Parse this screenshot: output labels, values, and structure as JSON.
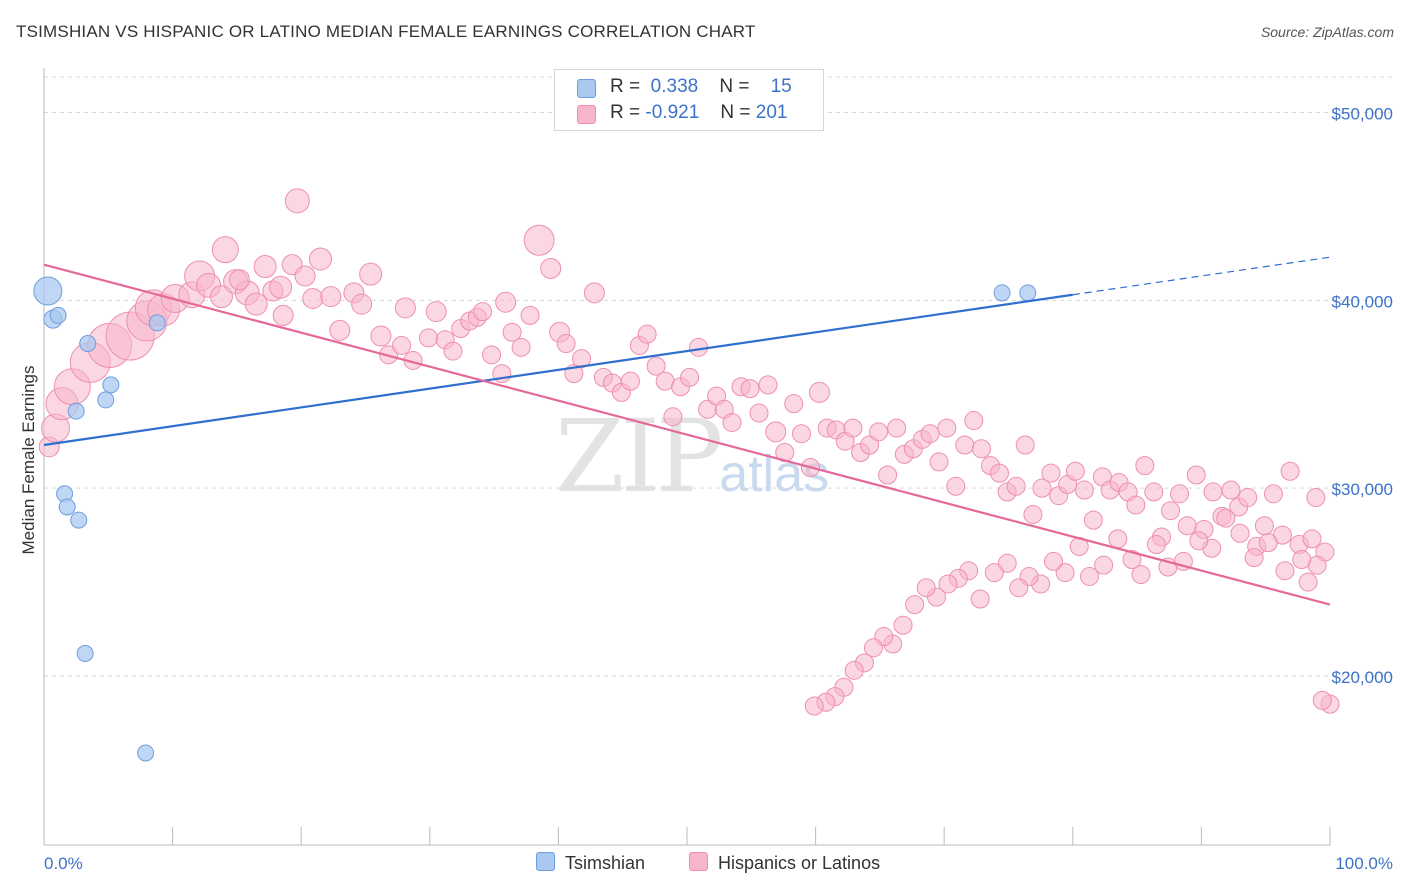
{
  "title": "TSIMSHIAN VS HISPANIC OR LATINO MEDIAN FEMALE EARNINGS CORRELATION CHART",
  "source": "Source: ZipAtlas.com",
  "watermark": {
    "zip": "ZIP",
    "atlas": "atlas"
  },
  "legend": {
    "rows": [
      {
        "r_label": "R =",
        "r_value": "0.338",
        "n_label": "N =",
        "n_value": "15",
        "color": "#a9c8f0"
      },
      {
        "r_label": "R =",
        "r_value": "-0.921",
        "n_label": "N =",
        "n_value": "201",
        "color": "#f7b6cb"
      }
    ]
  },
  "bottom_legend": [
    {
      "label": "Tsimshian",
      "color": "#a9c8f0"
    },
    {
      "label": "Hispanics or Latinos",
      "color": "#f7b6cb"
    }
  ],
  "colors": {
    "blue_fill": "#a9c8f0",
    "blue_stroke": "#6d9ee0",
    "blue_line": "#2f6fd0",
    "pink_fill": "#f7b6cb",
    "pink_stroke": "#ee8fb0",
    "pink_line": "#e4699a",
    "grid": "#d9d9d9",
    "axis_label": "#3d72c9"
  },
  "chart_data": {
    "type": "scatter",
    "title": "TSIMSHIAN VS HISPANIC OR LATINO MEDIAN FEMALE EARNINGS CORRELATION CHART",
    "xlabel": "",
    "ylabel": "Median Female Earnings",
    "xlim": [
      0,
      100
    ],
    "ylim": [
      11000,
      52000
    ],
    "x_tick_labels": [
      "0.0%",
      "100.0%"
    ],
    "y_ticks": [
      20000,
      30000,
      40000,
      50000
    ],
    "y_tick_labels": [
      "$20,000",
      "$30,000",
      "$40,000",
      "$50,000"
    ],
    "series": [
      {
        "name": "Tsimshian",
        "trend": {
          "x0": 0,
          "y0": 32300,
          "x1": 80,
          "y1": 40300,
          "x_dash_end": 100,
          "y_dash_end": 42300
        },
        "points": [
          [
            0.3,
            40500,
            14
          ],
          [
            0.7,
            39000,
            9
          ],
          [
            1.1,
            39200,
            8
          ],
          [
            2.5,
            34100,
            8
          ],
          [
            3.4,
            37700,
            8
          ],
          [
            4.8,
            34700,
            8
          ],
          [
            5.2,
            35500,
            8
          ],
          [
            8.8,
            38800,
            8
          ],
          [
            1.6,
            29700,
            8
          ],
          [
            1.8,
            29000,
            8
          ],
          [
            2.7,
            28300,
            8
          ],
          [
            3.2,
            21200,
            8
          ],
          [
            7.9,
            15900,
            8
          ],
          [
            74.5,
            40400,
            8
          ],
          [
            76.5,
            40400,
            8
          ]
        ]
      },
      {
        "name": "Hispanics or Latinos",
        "trend": {
          "x0": 0,
          "y0": 41900,
          "x1": 100,
          "y1": 23800
        },
        "points": [
          [
            0.4,
            32200,
            10
          ],
          [
            0.9,
            33200,
            14
          ],
          [
            1.4,
            34500,
            16
          ],
          [
            2.2,
            35400,
            18
          ],
          [
            3.6,
            36700,
            20
          ],
          [
            5.1,
            37600,
            22
          ],
          [
            6.7,
            38100,
            24
          ],
          [
            8.0,
            38900,
            20
          ],
          [
            8.5,
            39600,
            18
          ],
          [
            9.3,
            39500,
            16
          ],
          [
            10.2,
            40100,
            14
          ],
          [
            11.5,
            40300,
            13
          ],
          [
            12.1,
            41300,
            15
          ],
          [
            12.8,
            40800,
            12
          ],
          [
            13.8,
            40200,
            11
          ],
          [
            14.1,
            42700,
            13
          ],
          [
            14.9,
            41000,
            12
          ],
          [
            15.8,
            40400,
            12
          ],
          [
            16.5,
            39800,
            11
          ],
          [
            17.2,
            41800,
            11
          ],
          [
            15.2,
            41100,
            10
          ],
          [
            17.8,
            40500,
            10
          ],
          [
            18.4,
            40700,
            11
          ],
          [
            18.6,
            39200,
            10
          ],
          [
            19.3,
            41900,
            10
          ],
          [
            19.7,
            45300,
            12
          ],
          [
            20.3,
            41300,
            10
          ],
          [
            20.9,
            40100,
            10
          ],
          [
            21.5,
            42200,
            11
          ],
          [
            22.3,
            40200,
            10
          ],
          [
            23.0,
            38400,
            10
          ],
          [
            24.1,
            40400,
            10
          ],
          [
            24.7,
            39800,
            10
          ],
          [
            25.4,
            41400,
            11
          ],
          [
            26.2,
            38100,
            10
          ],
          [
            26.8,
            37100,
            9
          ],
          [
            27.8,
            37600,
            9
          ],
          [
            28.1,
            39600,
            10
          ],
          [
            28.7,
            36800,
            9
          ],
          [
            29.9,
            38000,
            9
          ],
          [
            30.5,
            39400,
            10
          ],
          [
            31.2,
            37900,
            9
          ],
          [
            31.8,
            37300,
            9
          ],
          [
            32.4,
            38500,
            9
          ],
          [
            33.1,
            38900,
            9
          ],
          [
            33.7,
            39100,
            9
          ],
          [
            34.8,
            37100,
            9
          ],
          [
            35.6,
            36100,
            9
          ],
          [
            34.1,
            39400,
            9
          ],
          [
            35.9,
            39900,
            10
          ],
          [
            36.4,
            38300,
            9
          ],
          [
            37.1,
            37500,
            9
          ],
          [
            37.8,
            39200,
            9
          ],
          [
            38.5,
            43200,
            15
          ],
          [
            39.4,
            41700,
            10
          ],
          [
            40.1,
            38300,
            10
          ],
          [
            40.6,
            37700,
            9
          ],
          [
            41.2,
            36100,
            9
          ],
          [
            41.8,
            36900,
            9
          ],
          [
            42.8,
            40400,
            10
          ],
          [
            43.5,
            35900,
            9
          ],
          [
            44.2,
            35600,
            9
          ],
          [
            44.9,
            35100,
            9
          ],
          [
            45.6,
            35700,
            9
          ],
          [
            46.3,
            37600,
            9
          ],
          [
            46.9,
            38200,
            9
          ],
          [
            47.6,
            36500,
            9
          ],
          [
            48.3,
            35700,
            9
          ],
          [
            48.9,
            33800,
            9
          ],
          [
            49.5,
            35400,
            9
          ],
          [
            50.2,
            35900,
            9
          ],
          [
            50.9,
            37500,
            9
          ],
          [
            51.6,
            34200,
            9
          ],
          [
            52.3,
            34900,
            9
          ],
          [
            52.9,
            34200,
            9
          ],
          [
            53.5,
            33500,
            9
          ],
          [
            54.2,
            35400,
            9
          ],
          [
            54.9,
            35300,
            9
          ],
          [
            55.6,
            34000,
            9
          ],
          [
            56.3,
            35500,
            9
          ],
          [
            56.9,
            33000,
            10
          ],
          [
            57.6,
            31900,
            9
          ],
          [
            58.3,
            34500,
            9
          ],
          [
            58.9,
            32900,
            9
          ],
          [
            59.6,
            31100,
            9
          ],
          [
            60.3,
            35100,
            10
          ],
          [
            60.9,
            33200,
            9
          ],
          [
            61.6,
            33100,
            9
          ],
          [
            62.3,
            32500,
            9
          ],
          [
            62.9,
            33200,
            9
          ],
          [
            63.5,
            31900,
            9
          ],
          [
            64.2,
            32300,
            9
          ],
          [
            64.9,
            33000,
            9
          ],
          [
            65.6,
            30700,
            9
          ],
          [
            66.3,
            33200,
            9
          ],
          [
            66.9,
            31800,
            9
          ],
          [
            67.6,
            32100,
            9
          ],
          [
            68.3,
            32600,
            9
          ],
          [
            68.9,
            32900,
            9
          ],
          [
            69.6,
            31400,
            9
          ],
          [
            70.2,
            33200,
            9
          ],
          [
            70.9,
            30100,
            9
          ],
          [
            71.6,
            32300,
            9
          ],
          [
            72.3,
            33600,
            9
          ],
          [
            72.9,
            32100,
            9
          ],
          [
            73.6,
            31200,
            9
          ],
          [
            74.3,
            30800,
            9
          ],
          [
            74.9,
            29800,
            9
          ],
          [
            75.6,
            30100,
            9
          ],
          [
            76.3,
            32300,
            9
          ],
          [
            76.9,
            28600,
            9
          ],
          [
            77.6,
            30000,
            9
          ],
          [
            78.3,
            30800,
            9
          ],
          [
            78.9,
            29600,
            9
          ],
          [
            79.6,
            30200,
            9
          ],
          [
            80.2,
            30900,
            9
          ],
          [
            80.9,
            29900,
            9
          ],
          [
            81.6,
            28300,
            9
          ],
          [
            82.3,
            30600,
            9
          ],
          [
            82.9,
            29900,
            9
          ],
          [
            83.6,
            30300,
            9
          ],
          [
            84.3,
            29800,
            9
          ],
          [
            84.9,
            29100,
            9
          ],
          [
            85.6,
            31200,
            9
          ],
          [
            86.3,
            29800,
            9
          ],
          [
            86.9,
            27400,
            9
          ],
          [
            87.6,
            28800,
            9
          ],
          [
            88.3,
            29700,
            9
          ],
          [
            88.9,
            28000,
            9
          ],
          [
            89.6,
            30700,
            9
          ],
          [
            90.2,
            27800,
            9
          ],
          [
            90.9,
            29800,
            9
          ],
          [
            91.6,
            28500,
            9
          ],
          [
            92.3,
            29900,
            9
          ],
          [
            92.9,
            29000,
            9
          ],
          [
            93.6,
            29500,
            9
          ],
          [
            94.3,
            26900,
            9
          ],
          [
            94.9,
            28000,
            9
          ],
          [
            95.6,
            29700,
            9
          ],
          [
            96.3,
            27500,
            9
          ],
          [
            96.9,
            30900,
            9
          ],
          [
            97.6,
            27000,
            9
          ],
          [
            98.3,
            25000,
            9
          ],
          [
            98.9,
            29500,
            9
          ],
          [
            99.6,
            26600,
            9
          ],
          [
            99.0,
            25900,
            9
          ],
          [
            98.6,
            27300,
            9
          ],
          [
            97.8,
            26200,
            9
          ],
          [
            96.5,
            25600,
            9
          ],
          [
            95.2,
            27100,
            9
          ],
          [
            94.1,
            26300,
            9
          ],
          [
            93.0,
            27600,
            9
          ],
          [
            91.9,
            28400,
            9
          ],
          [
            90.8,
            26800,
            9
          ],
          [
            89.8,
            27200,
            9
          ],
          [
            88.6,
            26100,
            9
          ],
          [
            87.4,
            25800,
            9
          ],
          [
            86.5,
            27000,
            9
          ],
          [
            85.3,
            25400,
            9
          ],
          [
            84.6,
            26200,
            9
          ],
          [
            83.5,
            27300,
            9
          ],
          [
            82.4,
            25900,
            9
          ],
          [
            81.3,
            25300,
            9
          ],
          [
            80.5,
            26900,
            9
          ],
          [
            79.4,
            25500,
            9
          ],
          [
            78.5,
            26100,
            9
          ],
          [
            77.5,
            24900,
            9
          ],
          [
            76.6,
            25300,
            9
          ],
          [
            75.8,
            24700,
            9
          ],
          [
            74.9,
            26000,
            9
          ],
          [
            73.9,
            25500,
            9
          ],
          [
            72.8,
            24100,
            9
          ],
          [
            71.9,
            25600,
            9
          ],
          [
            71.1,
            25200,
            9
          ],
          [
            70.3,
            24900,
            9
          ],
          [
            69.4,
            24200,
            9
          ],
          [
            68.6,
            24700,
            9
          ],
          [
            67.7,
            23800,
            9
          ],
          [
            66.8,
            22700,
            9
          ],
          [
            66.0,
            21700,
            9
          ],
          [
            65.3,
            22100,
            9
          ],
          [
            64.5,
            21500,
            9
          ],
          [
            63.8,
            20700,
            9
          ],
          [
            63.0,
            20300,
            9
          ],
          [
            62.2,
            19400,
            9
          ],
          [
            61.5,
            18900,
            9
          ],
          [
            60.8,
            18600,
            9
          ],
          [
            59.9,
            18400,
            9
          ],
          [
            100.0,
            18500,
            9
          ],
          [
            99.4,
            18700,
            9
          ]
        ]
      }
    ]
  }
}
